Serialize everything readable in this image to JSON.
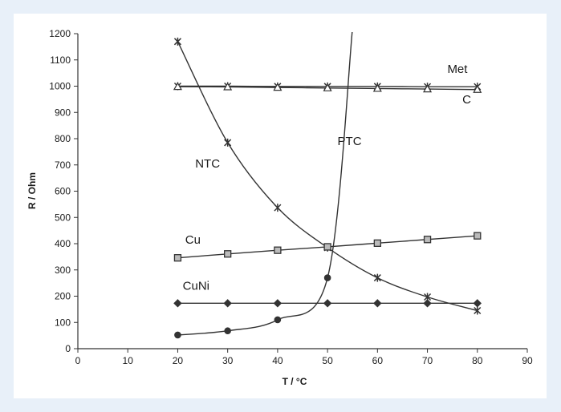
{
  "chart_data": {
    "type": "line",
    "title": "",
    "xlabel": "T / °C",
    "ylabel": "R / Ohm",
    "xlim": [
      0,
      90
    ],
    "ylim": [
      0,
      1200
    ],
    "xticks": [
      0,
      10,
      20,
      30,
      40,
      50,
      60,
      70,
      80,
      90
    ],
    "yticks": [
      0,
      100,
      200,
      300,
      400,
      500,
      600,
      700,
      800,
      900,
      1000,
      1100,
      1200
    ],
    "grid": false,
    "legend": "none",
    "series": [
      {
        "name": "Met",
        "marker": "x",
        "color": "#333333",
        "x": [
          20,
          30,
          40,
          50,
          60,
          70,
          80
        ],
        "y": [
          1000,
          1000,
          999,
          999,
          999,
          998,
          998
        ]
      },
      {
        "name": "C",
        "marker": "triangle",
        "color": "#333333",
        "x": [
          20,
          30,
          40,
          50,
          60,
          70,
          80
        ],
        "y": [
          998,
          997,
          995,
          993,
          991,
          989,
          987
        ]
      },
      {
        "name": "NTC",
        "marker": "x",
        "color": "#333333",
        "x": [
          20,
          30,
          40,
          50,
          60,
          70,
          80
        ],
        "y": [
          1170,
          785,
          537,
          385,
          270,
          197,
          145
        ]
      },
      {
        "name": "PTC",
        "marker": "circle",
        "color": "#333333",
        "x": [
          20,
          30,
          40,
          50,
          55
        ],
        "y": [
          52,
          68,
          110,
          270,
          1220
        ]
      },
      {
        "name": "Cu",
        "marker": "square",
        "color": "#333333",
        "x": [
          20,
          30,
          40,
          50,
          60,
          70,
          80
        ],
        "y": [
          346,
          361,
          375,
          388,
          402,
          416,
          430
        ]
      },
      {
        "name": "CuNi",
        "marker": "diamond",
        "color": "#333333",
        "x": [
          20,
          30,
          40,
          50,
          60,
          70,
          80
        ],
        "y": [
          173,
          173,
          173,
          173,
          173,
          173,
          173
        ]
      }
    ],
    "labels": [
      {
        "text": "Met",
        "x": 74,
        "y": 1050
      },
      {
        "text": "C",
        "x": 77,
        "y": 935
      },
      {
        "text": "PTC",
        "x": 52,
        "y": 775
      },
      {
        "text": "NTC",
        "x": 23.5,
        "y": 690
      },
      {
        "text": "Cu",
        "x": 21.5,
        "y": 400
      },
      {
        "text": "CuNi",
        "x": 21,
        "y": 225
      }
    ]
  }
}
